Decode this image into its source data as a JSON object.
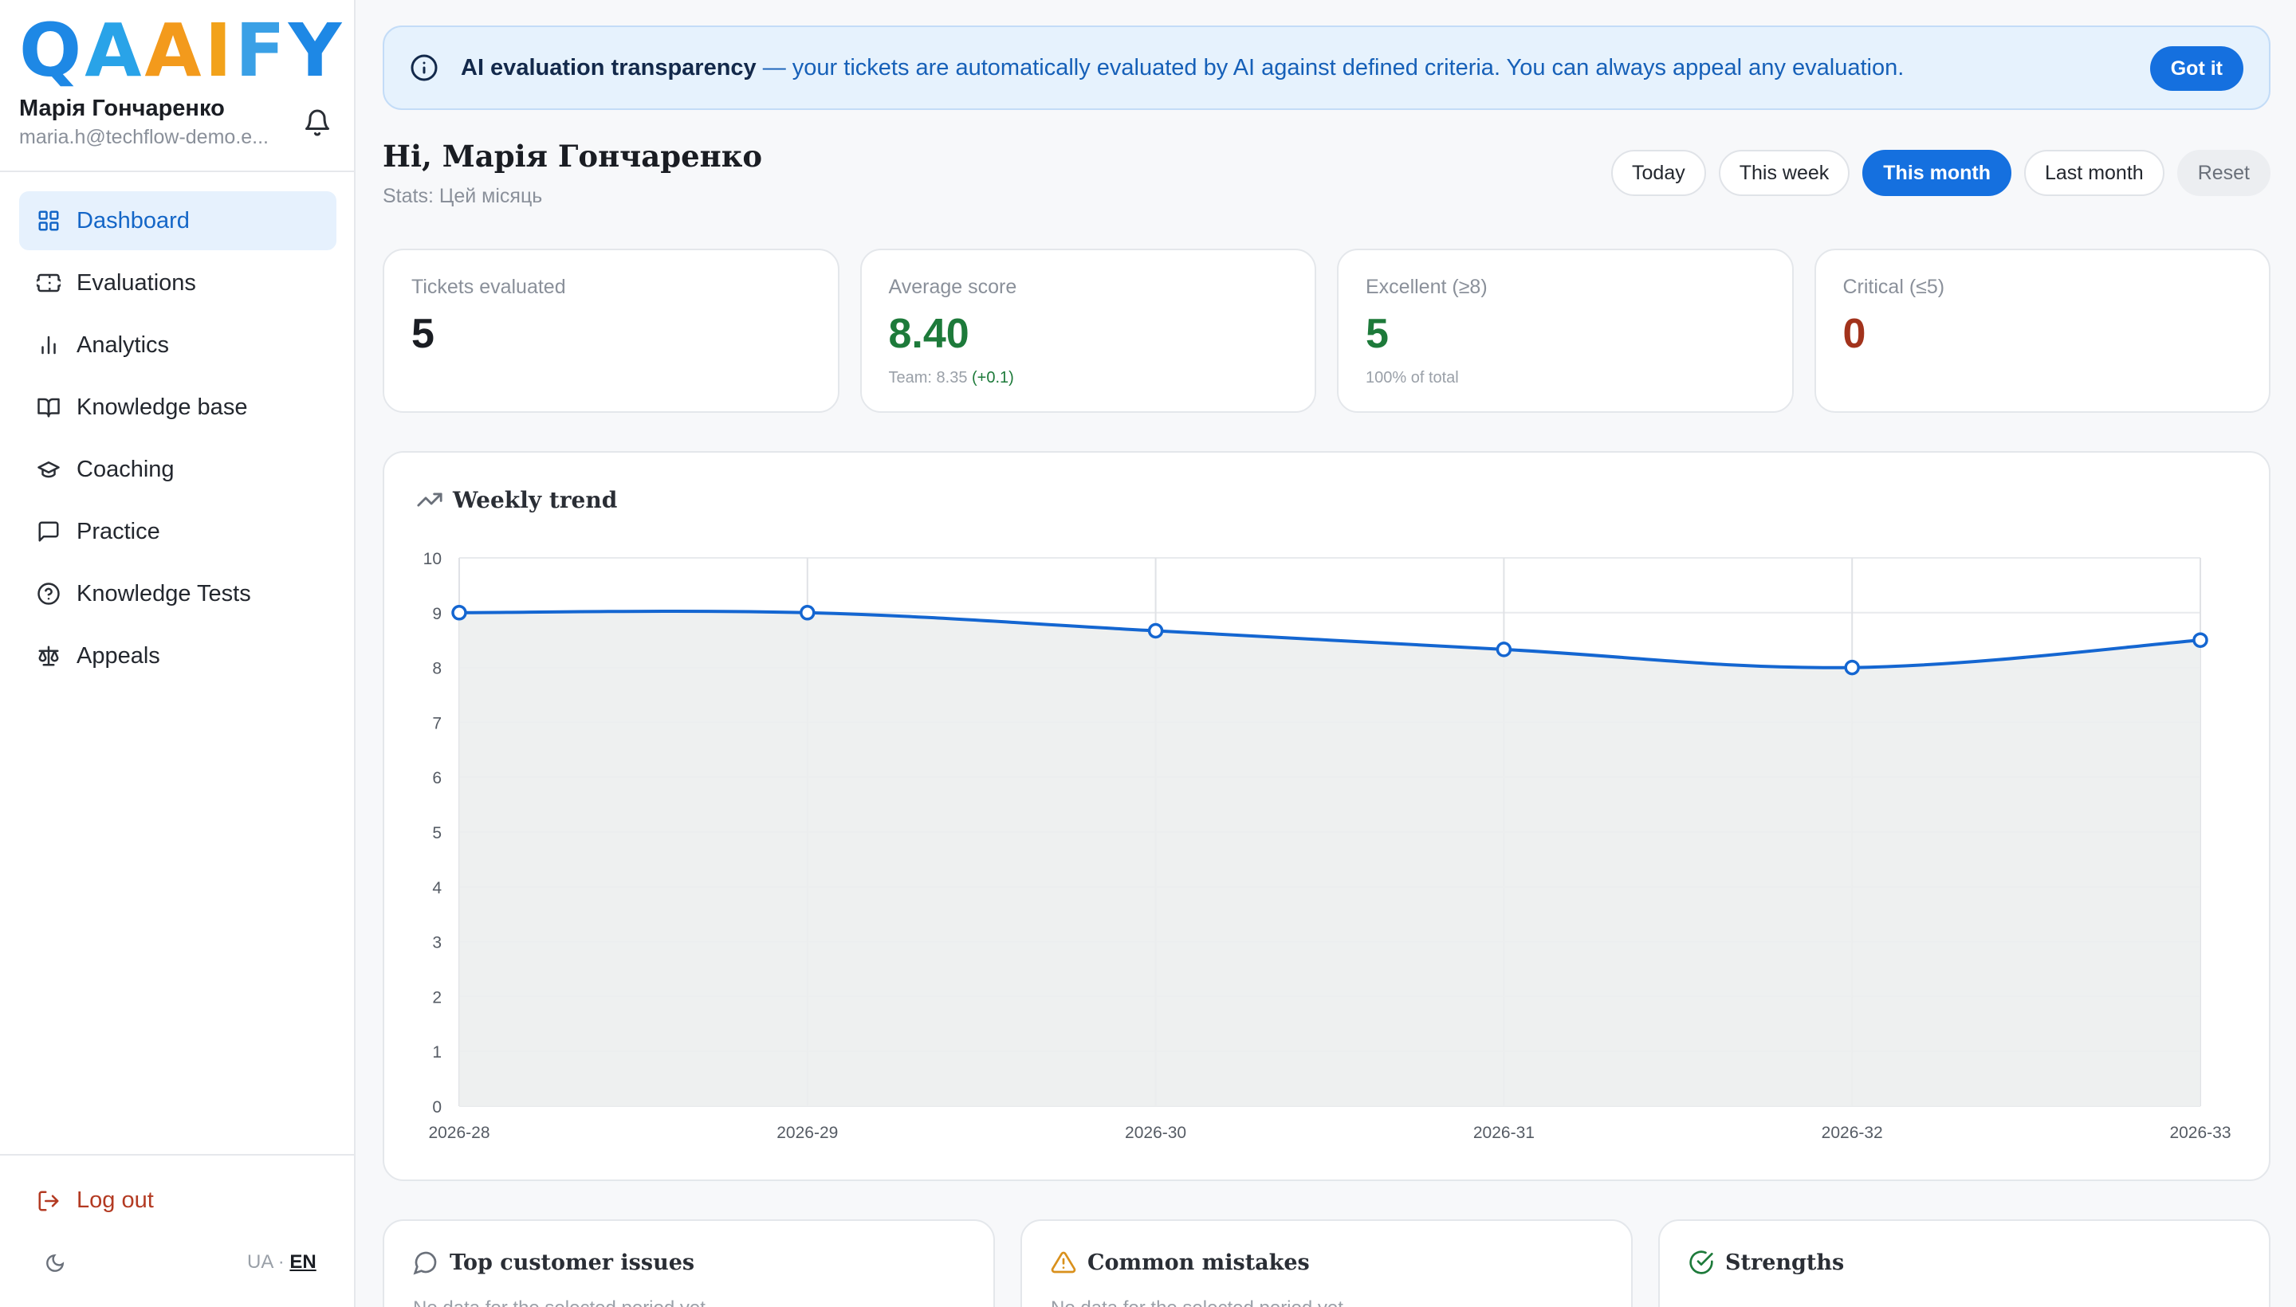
{
  "app": {
    "logo_letters": [
      "Q",
      "A",
      "A",
      "I",
      "F",
      "Y"
    ],
    "logo_colors": [
      "#1e88e5",
      "#29a3e8",
      "#f39a1c",
      "#f2a21a",
      "#3aa0e6",
      "#1e88e5"
    ]
  },
  "user": {
    "name": "Марія Гончаренко",
    "email": "maria.h@techflow-demo.e..."
  },
  "nav": {
    "items": [
      {
        "label": "Dashboard",
        "icon": "dashboard-icon",
        "active": true
      },
      {
        "label": "Evaluations",
        "icon": "ticket-icon"
      },
      {
        "label": "Analytics",
        "icon": "bar-chart-icon"
      },
      {
        "label": "Knowledge base",
        "icon": "book-icon"
      },
      {
        "label": "Coaching",
        "icon": "graduation-cap-icon"
      },
      {
        "label": "Practice",
        "icon": "chat-bubble-icon"
      },
      {
        "label": "Knowledge Tests",
        "icon": "help-circle-icon"
      },
      {
        "label": "Appeals",
        "icon": "scales-icon"
      }
    ],
    "logout_label": "Log out",
    "lang_ua": "UA",
    "lang_sep": "·",
    "lang_en": "EN"
  },
  "banner": {
    "title": "AI evaluation transparency",
    "text": " — your tickets are automatically evaluated by AI against defined criteria. You can always appeal any evaluation.",
    "button": "Got it"
  },
  "header": {
    "greeting": "Hi, Марія Гончаренко",
    "stats_label": "Stats: Цей місяць"
  },
  "periods": [
    "Today",
    "This week",
    "This month",
    "Last month",
    "Reset"
  ],
  "active_period": "This month",
  "cards": {
    "evaluated": {
      "label": "Tickets evaluated",
      "value": "5"
    },
    "average": {
      "label": "Average score",
      "value": "8.40",
      "team_label": "Team: 8.35",
      "delta": "(+0.1)"
    },
    "excellent": {
      "label": "Excellent (≥8)",
      "value": "5",
      "note": "100% of total"
    },
    "critical": {
      "label": "Critical (≤5)",
      "value": "0"
    }
  },
  "colors": {
    "accent": "#1570df",
    "line": "#1466d1",
    "area": "#eceeee",
    "good": "#1d7a3a",
    "bad": "#a2331c"
  },
  "chart_data": {
    "type": "line",
    "title": "Weekly trend",
    "x": [
      "2026-28",
      "2026-29",
      "2026-30",
      "2026-31",
      "2026-32",
      "2026-33"
    ],
    "series": [
      {
        "values": [
          9.0,
          9.0,
          8.67,
          8.33,
          8.0,
          8.5
        ]
      }
    ],
    "ylim": [
      0,
      10
    ],
    "yticks": [
      0,
      1,
      2,
      3,
      4,
      5,
      6,
      7,
      8,
      9,
      10
    ],
    "grid": true,
    "fill": true
  },
  "bottom": {
    "issues": {
      "title": "Top customer issues",
      "empty": "No data for the selected period yet"
    },
    "mistakes": {
      "title": "Common mistakes",
      "empty": "No data for the selected period yet"
    },
    "strengths": {
      "title": "Strengths"
    }
  }
}
